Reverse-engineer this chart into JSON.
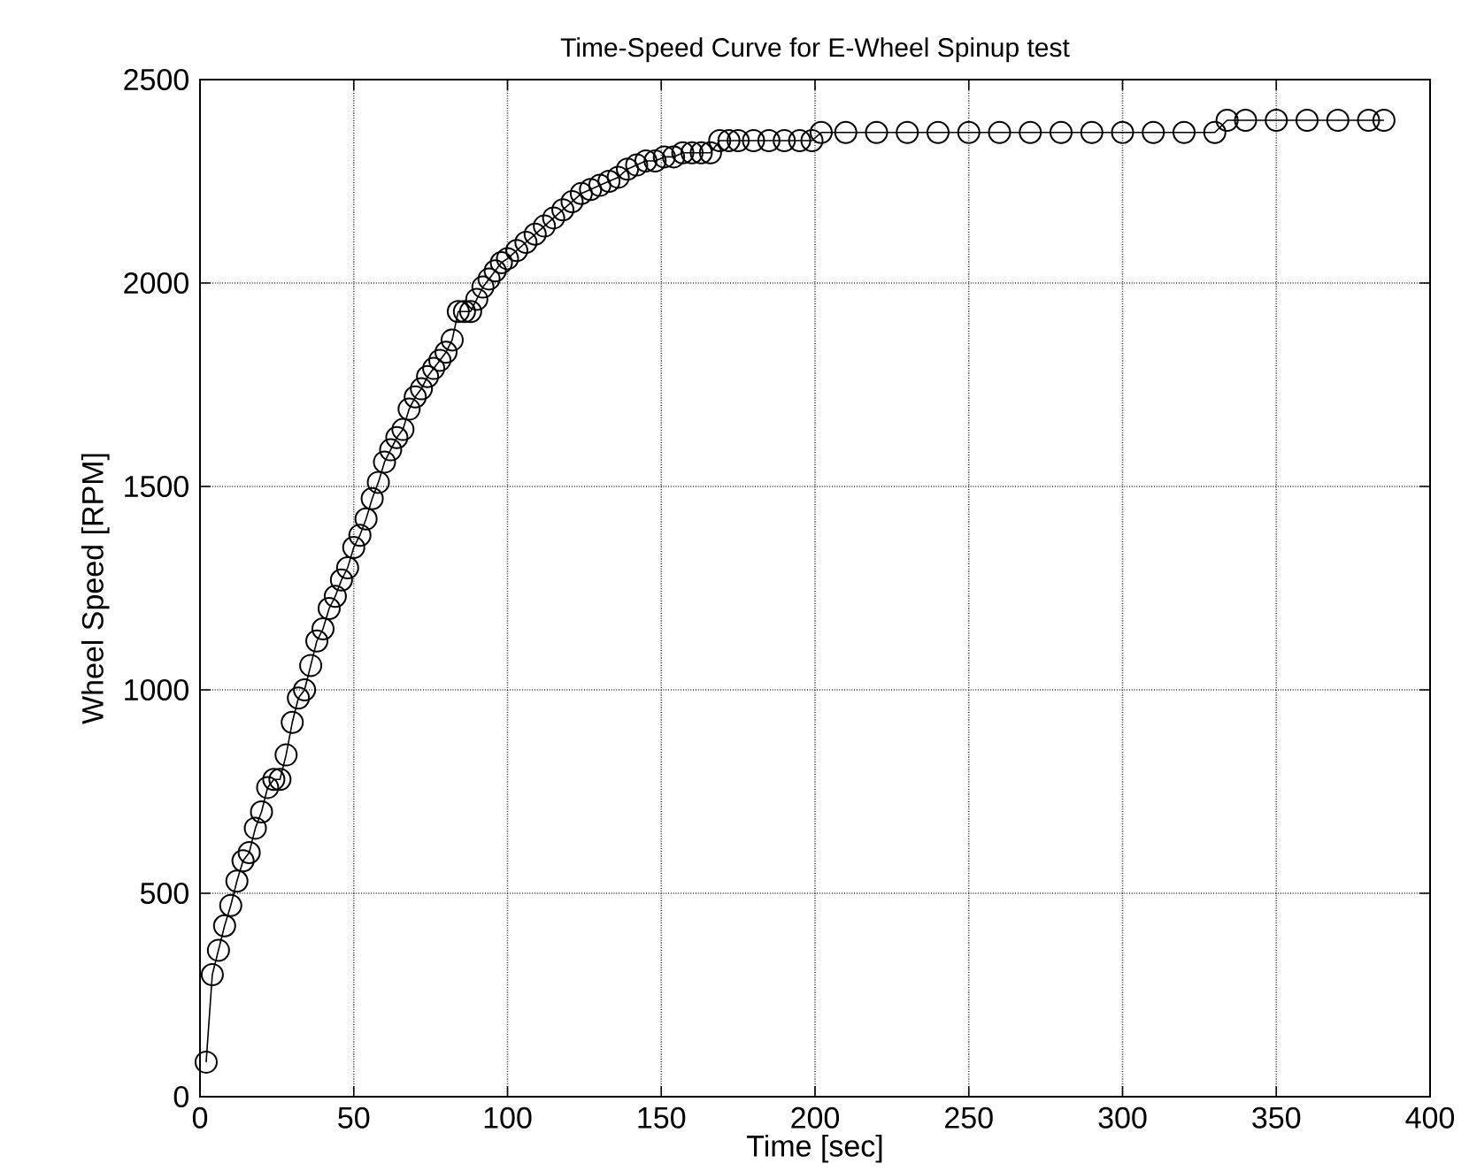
{
  "chart_data": {
    "type": "line",
    "title": "Time-Speed Curve for E-Wheel Spinup test",
    "xlabel": "Time [sec]",
    "ylabel": "Wheel Speed [RPM]",
    "xlim": [
      0,
      400
    ],
    "ylim": [
      0,
      2500
    ],
    "xticks": [
      0,
      50,
      100,
      150,
      200,
      250,
      300,
      350,
      400
    ],
    "yticks": [
      0,
      500,
      1000,
      1500,
      2000,
      2500
    ],
    "grid": true,
    "marker": "circle",
    "line_style": "solid",
    "series": [
      {
        "color": "#000000",
        "x": [
          2,
          4,
          6,
          8,
          10,
          12,
          14,
          16,
          18,
          20,
          22,
          24,
          26,
          28,
          30,
          32,
          34,
          36,
          38,
          40,
          42,
          44,
          46,
          48,
          50,
          52,
          54,
          56,
          58,
          60,
          62,
          64,
          66,
          68,
          70,
          72,
          74,
          76,
          78,
          80,
          82,
          84,
          86,
          88,
          90,
          92,
          94,
          96,
          98,
          100,
          103,
          106,
          109,
          112,
          115,
          118,
          121,
          124,
          127,
          130,
          133,
          136,
          139,
          142,
          145,
          148,
          151,
          154,
          157,
          160,
          163,
          166,
          169,
          172,
          175,
          180,
          185,
          190,
          195,
          199,
          202,
          210,
          220,
          230,
          240,
          250,
          260,
          270,
          280,
          290,
          300,
          310,
          320,
          330,
          334,
          340,
          350,
          360,
          370,
          380,
          385
        ],
        "values": [
          85,
          300,
          360,
          420,
          470,
          530,
          580,
          600,
          660,
          700,
          760,
          780,
          780,
          840,
          920,
          980,
          1000,
          1060,
          1120,
          1150,
          1200,
          1230,
          1270,
          1300,
          1350,
          1380,
          1420,
          1470,
          1510,
          1560,
          1590,
          1620,
          1640,
          1690,
          1720,
          1740,
          1770,
          1790,
          1810,
          1830,
          1860,
          1930,
          1930,
          1930,
          1960,
          1990,
          2010,
          2030,
          2050,
          2060,
          2080,
          2100,
          2120,
          2140,
          2160,
          2180,
          2200,
          2220,
          2230,
          2240,
          2250,
          2260,
          2280,
          2290,
          2300,
          2300,
          2310,
          2310,
          2320,
          2320,
          2320,
          2320,
          2350,
          2350,
          2350,
          2350,
          2350,
          2350,
          2350,
          2350,
          2370,
          2370,
          2370,
          2370,
          2370,
          2370,
          2370,
          2370,
          2370,
          2370,
          2370,
          2370,
          2370,
          2370,
          2400,
          2400,
          2400,
          2400,
          2400,
          2400,
          2400
        ]
      }
    ]
  }
}
